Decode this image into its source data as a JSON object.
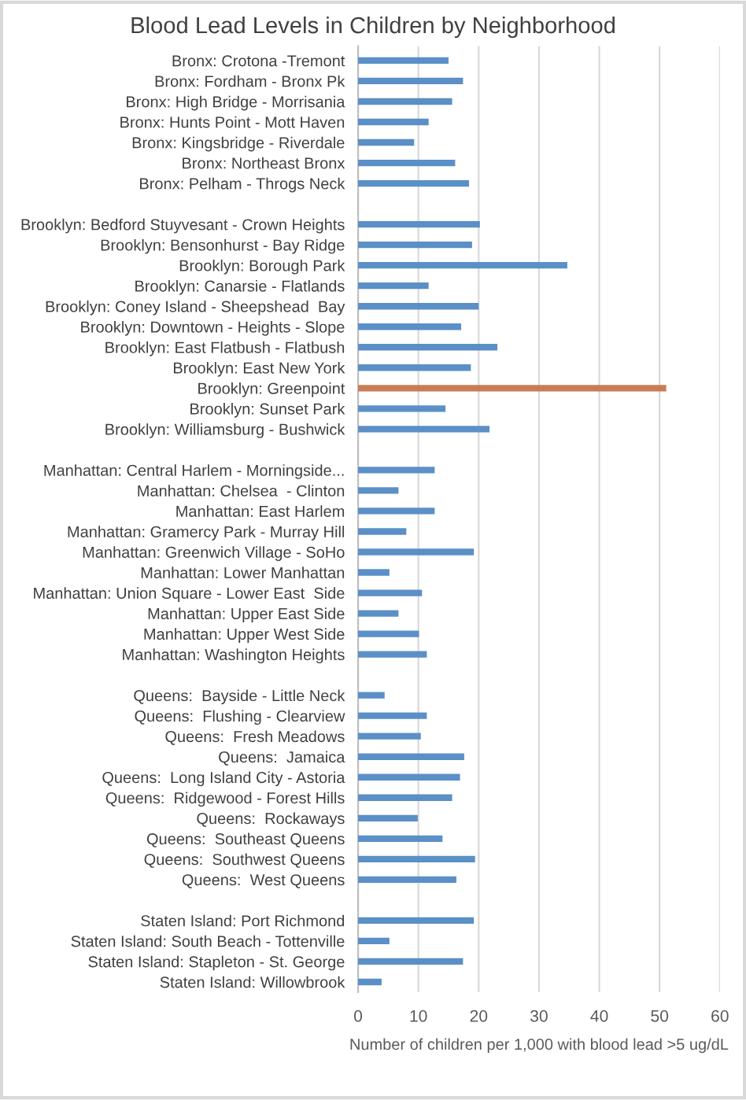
{
  "chart_data": {
    "type": "bar",
    "orientation": "horizontal",
    "title": "Blood Lead Levels in Children by Neighborhood",
    "xlabel": "Number of children per 1,000 with blood lead >5 ug/dL",
    "categories": [
      "Bronx: Crotona -Tremont",
      "Bronx: Fordham - Bronx Pk",
      "Bronx: High Bridge - Morrisania",
      "Bronx: Hunts Point - Mott Haven",
      "Bronx: Kingsbridge - Riverdale",
      "Bronx: Northeast Bronx",
      "Bronx: Pelham - Throgs Neck",
      null,
      "Brooklyn: Bedford Stuyvesant - Crown Heights",
      "Brooklyn: Bensonhurst - Bay Ridge",
      "Brooklyn: Borough Park",
      "Brooklyn: Canarsie - Flatlands",
      "Brooklyn: Coney Island - Sheepshead  Bay",
      "Brooklyn: Downtown - Heights - Slope",
      "Brooklyn: East Flatbush - Flatbush",
      "Brooklyn: East New York",
      "Brooklyn: Greenpoint",
      "Brooklyn: Sunset Park",
      "Brooklyn: Williamsburg - Bushwick",
      null,
      "Manhattan: Central Harlem - Morningside...",
      "Manhattan: Chelsea  - Clinton",
      "Manhattan: East Harlem",
      "Manhattan: Gramercy Park - Murray Hill",
      "Manhattan: Greenwich Village - SoHo",
      "Manhattan: Lower Manhattan",
      "Manhattan: Union Square - Lower East  Side",
      "Manhattan: Upper East Side",
      "Manhattan: Upper West Side",
      "Manhattan: Washington Heights",
      null,
      "Queens:  Bayside - Little Neck",
      "Queens:  Flushing - Clearview",
      "Queens:  Fresh Meadows",
      "Queens:  Jamaica",
      "Queens:  Long Island City - Astoria",
      "Queens:  Ridgewood - Forest Hills",
      "Queens:  Rockaways",
      "Queens:  Southeast Queens",
      "Queens:  Southwest Queens",
      "Queens:  West Queens",
      null,
      "Staten Island: Port Richmond",
      "Staten Island: South Beach - Tottenville",
      "Staten Island: Stapleton - St. George",
      "Staten Island: Willowbrook"
    ],
    "values": [
      15.0,
      17.4,
      15.6,
      11.7,
      9.3,
      16.1,
      18.4,
      null,
      20.2,
      18.9,
      34.7,
      11.7,
      20.0,
      17.1,
      23.1,
      18.7,
      51.1,
      14.5,
      21.8,
      null,
      12.7,
      6.7,
      12.7,
      8.0,
      19.2,
      5.2,
      10.6,
      6.7,
      10.1,
      11.4,
      null,
      4.4,
      11.4,
      10.4,
      17.6,
      16.9,
      15.6,
      9.9,
      14.0,
      19.4,
      16.3,
      null,
      19.2,
      5.2,
      17.4,
      3.9
    ],
    "colors": [
      "#5b8fc7",
      "#5b8fc7",
      "#5b8fc7",
      "#5b8fc7",
      "#5b8fc7",
      "#5b8fc7",
      "#5b8fc7",
      null,
      "#5b8fc7",
      "#5b8fc7",
      "#5b8fc7",
      "#5b8fc7",
      "#5b8fc7",
      "#5b8fc7",
      "#5b8fc7",
      "#5b8fc7",
      "#c97d55",
      "#5b8fc7",
      "#5b8fc7",
      null,
      "#5b8fc7",
      "#5b8fc7",
      "#5b8fc7",
      "#5b8fc7",
      "#5b8fc7",
      "#5b8fc7",
      "#5b8fc7",
      "#5b8fc7",
      "#5b8fc7",
      "#5b8fc7",
      null,
      "#5b8fc7",
      "#5b8fc7",
      "#5b8fc7",
      "#5b8fc7",
      "#5b8fc7",
      "#5b8fc7",
      "#5b8fc7",
      "#5b8fc7",
      "#5b8fc7",
      "#5b8fc7",
      null,
      "#5b8fc7",
      "#5b8fc7",
      "#5b8fc7",
      "#5b8fc7"
    ],
    "xlim": [
      0,
      60
    ],
    "xticks": [
      0,
      10,
      20,
      30,
      40,
      50,
      60
    ],
    "grid": "x"
  }
}
